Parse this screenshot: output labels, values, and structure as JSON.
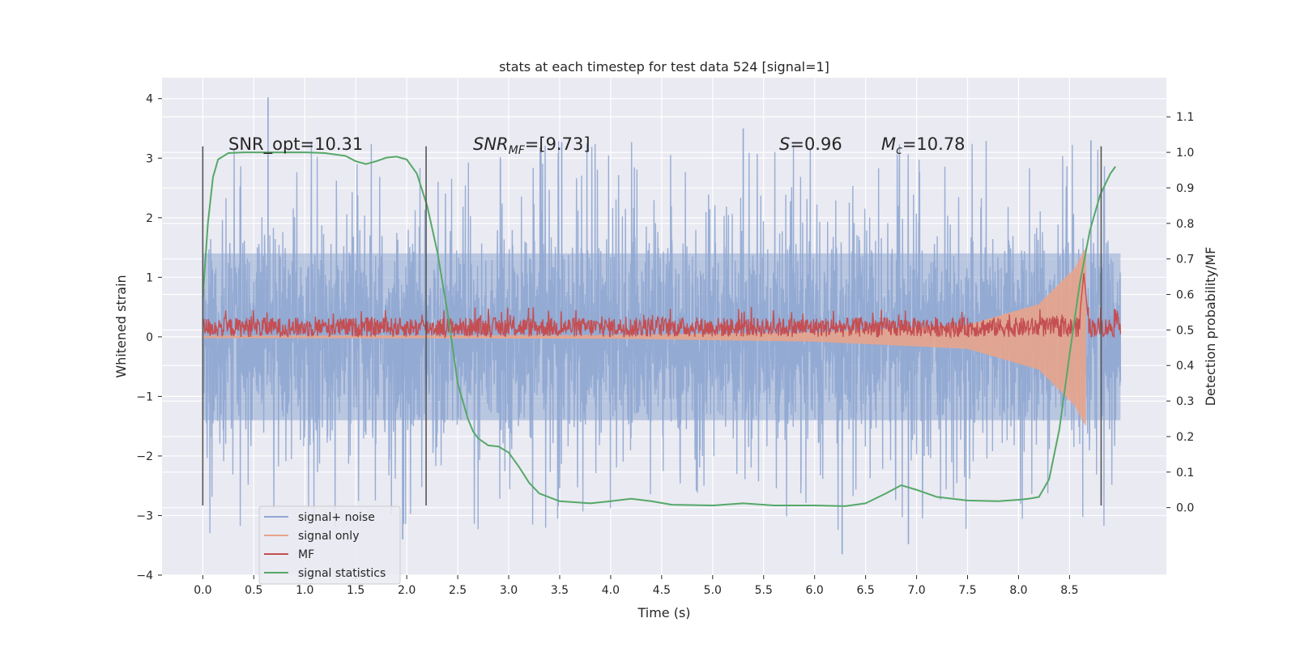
{
  "chart_data": {
    "type": "line",
    "title": "stats at each timestep for test data 524 [signal=1]",
    "xlabel": "Time (s)",
    "ylabel": "Whitened strain",
    "y2label": "Detection probability/MF",
    "xlim": [
      -0.4,
      9.45
    ],
    "ylim": [
      -4.0,
      4.35
    ],
    "y2lim": [
      -0.19,
      1.21
    ],
    "xticks": [
      0.0,
      0.5,
      1.0,
      1.5,
      2.0,
      2.5,
      3.0,
      3.5,
      4.0,
      4.5,
      5.0,
      5.5,
      6.0,
      6.5,
      7.0,
      7.5,
      8.0,
      8.5
    ],
    "xtick_labels": [
      "0.0",
      "0.5",
      "1.0",
      "1.5",
      "2.0",
      "2.5",
      "3.0",
      "3.5",
      "4.0",
      "4.5",
      "5.0",
      "5.5",
      "6.0",
      "6.5",
      "7.0",
      "7.5",
      "8.0",
      "8.5"
    ],
    "yticks": [
      4,
      3,
      2,
      1,
      0,
      -1,
      -2,
      -3,
      -4
    ],
    "ytick_labels": [
      "4",
      "3",
      "2",
      "1",
      "0",
      "−1",
      "−2",
      "−3",
      "−4"
    ],
    "y2ticks": [
      1.1,
      1.0,
      0.9,
      0.8,
      0.7,
      0.6,
      0.5,
      0.4,
      0.3,
      0.2,
      0.1,
      0.0
    ],
    "y2tick_labels": [
      "1.1",
      "1.0",
      "0.9",
      "0.8",
      "0.7",
      "0.6",
      "0.5",
      "0.4",
      "0.3",
      "0.2",
      "0.1",
      "0.0"
    ],
    "grid": true,
    "legend_position": "lower-left",
    "annotations": {
      "snr_opt": "SNR_opt=10.31",
      "snr_mf_main": "SNR",
      "snr_mf_sub": "MF",
      "snr_mf_value": "=[9.73]",
      "s_symbol": "S",
      "s_value": "=0.96",
      "mc_main": "M",
      "mc_sub": "c",
      "mc_value": "=10.78"
    },
    "vertical_lines_x": [
      0.0,
      2.19,
      8.81
    ],
    "series": [
      {
        "name": "signal+ noise",
        "color": "#8fa7d1",
        "x_range": [
          0.0,
          9.0
        ],
        "envelope_core": 1.4,
        "spike_max": 4.02,
        "spike_min": -3.65
      },
      {
        "name": "signal only",
        "color": "#e8a48b",
        "x_range": [
          0.0,
          8.66
        ],
        "amplitude_points": [
          [
            0.0,
            0.02
          ],
          [
            4.0,
            0.03
          ],
          [
            6.0,
            0.08
          ],
          [
            7.5,
            0.2
          ],
          [
            8.2,
            0.55
          ],
          [
            8.55,
            1.15
          ],
          [
            8.66,
            1.5
          ]
        ]
      },
      {
        "name": "MF",
        "color": "#c44e52",
        "axis": "right",
        "x_range": [
          0.0,
          9.0
        ],
        "baseline": 0.5,
        "band": [
          0.48,
          0.535
        ],
        "peak": [
          8.64,
          0.66
        ]
      },
      {
        "name": "signal statistics",
        "color": "#55a868",
        "axis": "right",
        "x": [
          0.0,
          0.05,
          0.1,
          0.15,
          0.25,
          0.4,
          0.6,
          0.8,
          1.0,
          1.2,
          1.4,
          1.5,
          1.6,
          1.7,
          1.8,
          1.9,
          2.0,
          2.1,
          2.2,
          2.3,
          2.4,
          2.5,
          2.6,
          2.65,
          2.7,
          2.8,
          2.9,
          3.0,
          3.1,
          3.2,
          3.3,
          3.5,
          3.8,
          4.0,
          4.2,
          4.4,
          4.6,
          5.0,
          5.3,
          5.6,
          6.0,
          6.3,
          6.5,
          6.7,
          6.85,
          7.0,
          7.2,
          7.5,
          7.8,
          8.0,
          8.1,
          8.2,
          8.3,
          8.4,
          8.5,
          8.6,
          8.7,
          8.8,
          8.9,
          8.95
        ],
        "y": [
          0.59,
          0.8,
          0.93,
          0.98,
          0.998,
          1.0,
          1.0,
          1.0,
          1.0,
          0.998,
          0.99,
          0.975,
          0.967,
          0.975,
          0.985,
          0.988,
          0.98,
          0.94,
          0.85,
          0.72,
          0.55,
          0.35,
          0.25,
          0.215,
          0.195,
          0.175,
          0.172,
          0.155,
          0.115,
          0.07,
          0.04,
          0.018,
          0.012,
          0.018,
          0.025,
          0.018,
          0.008,
          0.006,
          0.012,
          0.006,
          0.006,
          0.004,
          0.012,
          0.04,
          0.063,
          0.05,
          0.03,
          0.02,
          0.018,
          0.022,
          0.025,
          0.03,
          0.08,
          0.22,
          0.43,
          0.63,
          0.78,
          0.88,
          0.94,
          0.96
        ]
      }
    ]
  }
}
